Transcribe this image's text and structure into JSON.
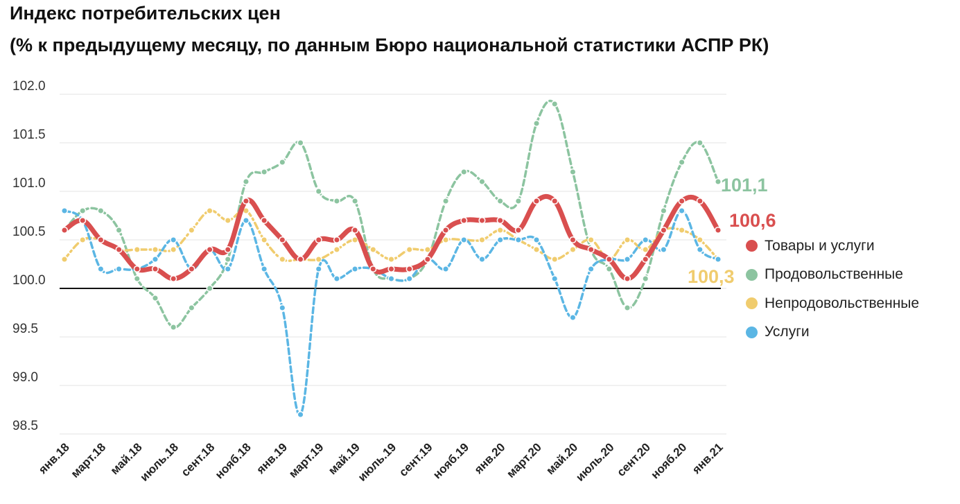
{
  "title_line1": "Индекс потребительских цен",
  "title_line2": "(% к предыдущему месяцу, по данным Бюро национальной статистики АСПР РК)",
  "chart_data": {
    "type": "line",
    "title": "Индекс потребительских цен",
    "subtitle": "(% к предыдущему месяцу, по данным Бюро национальной статистики АСПР РК)",
    "x": [
      "янв.18",
      "февр.18",
      "март.18",
      "апр.18",
      "май.18",
      "июнь.18",
      "июль.18",
      "авг.18",
      "сент.18",
      "окт.18",
      "нояб.18",
      "дек.18",
      "янв.19",
      "февр.19",
      "март.19",
      "апр.19",
      "май.19",
      "июнь.19",
      "июль.19",
      "авг.19",
      "сент.19",
      "окт.19",
      "нояб.19",
      "дек.19",
      "янв.20",
      "февр.20",
      "март.20",
      "апр.20",
      "май.20",
      "июнь.20",
      "июль.20",
      "авг.20",
      "сент.20",
      "окт.20",
      "нояб.20",
      "дек.20",
      "янв.21"
    ],
    "x_tick_labels": [
      "янв.18",
      "март.18",
      "май.18",
      "июль.18",
      "сент.18",
      "нояб.18",
      "янв.19",
      "март.19",
      "май.19",
      "июль.19",
      "сент.19",
      "нояб.19",
      "янв.20",
      "март.20",
      "май.20",
      "июль.20",
      "сент.20",
      "нояб.20",
      "янв.21"
    ],
    "y_tick_labels": [
      "98.5",
      "99.0",
      "99.5",
      "100.0",
      "100.5",
      "101.0",
      "101.5",
      "102.0"
    ],
    "ylim": [
      98.5,
      102.0
    ],
    "reference_line": 100.0,
    "grid": true,
    "legend_position": "right",
    "series": [
      {
        "name": "Товары и услуги",
        "color": "#d94f4f",
        "style": "solid-thick",
        "values": [
          100.6,
          100.7,
          100.5,
          100.4,
          100.2,
          100.2,
          100.1,
          100.2,
          100.4,
          100.4,
          100.9,
          100.7,
          100.5,
          100.3,
          100.5,
          100.5,
          100.6,
          100.2,
          100.2,
          100.2,
          100.3,
          100.6,
          100.7,
          100.7,
          100.7,
          100.6,
          100.9,
          100.9,
          100.5,
          100.4,
          100.3,
          100.1,
          100.3,
          100.6,
          100.9,
          100.9,
          100.6
        ],
        "end_label": "100,6"
      },
      {
        "name": "Продовольственные",
        "color": "#8cc4a0",
        "style": "dashed",
        "values": [
          100.6,
          100.8,
          100.8,
          100.6,
          100.1,
          99.9,
          99.6,
          99.8,
          100.0,
          100.3,
          101.1,
          101.2,
          101.3,
          101.5,
          101.0,
          100.9,
          100.9,
          100.2,
          100.1,
          100.1,
          100.3,
          100.9,
          101.2,
          101.1,
          100.9,
          100.9,
          101.7,
          101.9,
          101.2,
          100.4,
          100.2,
          99.8,
          100.1,
          100.8,
          101.3,
          101.5,
          101.1
        ],
        "end_label": "101,1"
      },
      {
        "name": "Непродовольственные",
        "color": "#f0cc6e",
        "style": "dashdot",
        "values": [
          100.3,
          100.5,
          100.5,
          100.4,
          100.4,
          100.4,
          100.4,
          100.6,
          100.8,
          100.7,
          100.8,
          100.5,
          100.3,
          100.3,
          100.3,
          100.4,
          100.5,
          100.4,
          100.3,
          100.4,
          100.4,
          100.5,
          100.5,
          100.5,
          100.6,
          100.5,
          100.4,
          100.3,
          100.4,
          100.5,
          100.3,
          100.5,
          100.4,
          100.6,
          100.6,
          100.5,
          100.3
        ],
        "end_label": "100,3"
      },
      {
        "name": "Услуги",
        "color": "#5bb6e4",
        "style": "dashed",
        "values": [
          100.8,
          100.7,
          100.2,
          100.2,
          100.2,
          100.3,
          100.5,
          100.2,
          100.4,
          100.2,
          100.7,
          100.2,
          99.8,
          98.7,
          100.2,
          100.1,
          100.2,
          100.2,
          100.1,
          100.1,
          100.3,
          100.2,
          100.5,
          100.3,
          100.5,
          100.5,
          100.5,
          100.1,
          99.7,
          100.2,
          100.3,
          100.3,
          100.5,
          100.4,
          100.8,
          100.4,
          100.3
        ]
      }
    ]
  }
}
